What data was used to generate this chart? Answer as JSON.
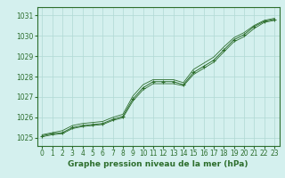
{
  "x": [
    0,
    1,
    2,
    3,
    4,
    5,
    6,
    7,
    8,
    9,
    10,
    11,
    12,
    13,
    14,
    15,
    16,
    17,
    18,
    19,
    20,
    21,
    22,
    23
  ],
  "y_main": [
    1025.1,
    1025.2,
    1025.25,
    1025.5,
    1025.6,
    1025.65,
    1025.7,
    1025.9,
    1026.05,
    1026.9,
    1027.45,
    1027.75,
    1027.75,
    1027.75,
    1027.6,
    1028.2,
    1028.5,
    1028.8,
    1029.3,
    1029.8,
    1030.05,
    1030.45,
    1030.7,
    1030.8
  ],
  "y_upper": [
    1025.15,
    1025.25,
    1025.35,
    1025.6,
    1025.7,
    1025.75,
    1025.8,
    1026.0,
    1026.15,
    1027.05,
    1027.6,
    1027.85,
    1027.85,
    1027.85,
    1027.7,
    1028.35,
    1028.65,
    1028.95,
    1029.45,
    1029.9,
    1030.15,
    1030.5,
    1030.75,
    1030.85
  ],
  "y_lower": [
    1025.05,
    1025.15,
    1025.2,
    1025.45,
    1025.55,
    1025.6,
    1025.65,
    1025.85,
    1025.98,
    1026.8,
    1027.35,
    1027.65,
    1027.65,
    1027.65,
    1027.55,
    1028.1,
    1028.4,
    1028.7,
    1029.2,
    1029.7,
    1029.95,
    1030.35,
    1030.65,
    1030.75
  ],
  "bg_color": "#d4f0ee",
  "line_color": "#2d6e2d",
  "grid_color": "#b0d8d4",
  "xlabel": "Graphe pression niveau de la mer (hPa)",
  "ylim": [
    1024.6,
    1031.4
  ],
  "xlim": [
    -0.5,
    23.5
  ],
  "yticks": [
    1025,
    1026,
    1027,
    1028,
    1029,
    1030,
    1031
  ],
  "xticks": [
    0,
    1,
    2,
    3,
    4,
    5,
    6,
    7,
    8,
    9,
    10,
    11,
    12,
    13,
    14,
    15,
    16,
    17,
    18,
    19,
    20,
    21,
    22,
    23
  ],
  "tick_fontsize": 5.5,
  "xlabel_fontsize": 6.5
}
